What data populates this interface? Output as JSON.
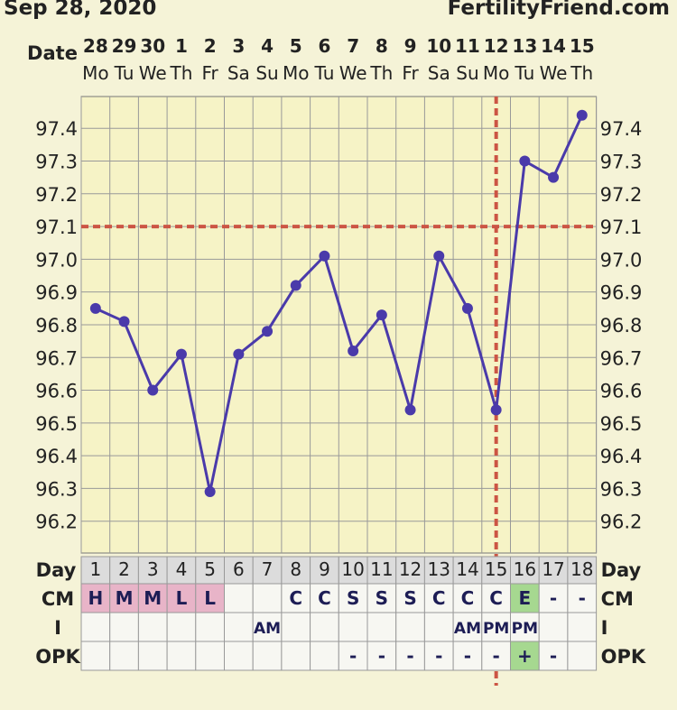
{
  "header": {
    "date": "Sep 28, 2020",
    "site": "FertilityFriend.com"
  },
  "row_labels": {
    "date": "Date",
    "day": "Day",
    "cm": "CM",
    "i": "I",
    "opk": "OPK"
  },
  "columns": [
    {
      "date": "28",
      "dow": "Mo",
      "day": "1",
      "cm": "H",
      "i": "",
      "opk": ""
    },
    {
      "date": "29",
      "dow": "Tu",
      "day": "2",
      "cm": "M",
      "i": "",
      "opk": ""
    },
    {
      "date": "30",
      "dow": "We",
      "day": "3",
      "cm": "M",
      "i": "",
      "opk": ""
    },
    {
      "date": "1",
      "dow": "Th",
      "day": "4",
      "cm": "L",
      "i": "",
      "opk": ""
    },
    {
      "date": "2",
      "dow": "Fr",
      "day": "5",
      "cm": "L",
      "i": "",
      "opk": ""
    },
    {
      "date": "3",
      "dow": "Sa",
      "day": "6",
      "cm": "",
      "i": "",
      "opk": ""
    },
    {
      "date": "4",
      "dow": "Su",
      "day": "7",
      "cm": "",
      "i": "AM",
      "opk": ""
    },
    {
      "date": "5",
      "dow": "Mo",
      "day": "8",
      "cm": "C",
      "i": "",
      "opk": ""
    },
    {
      "date": "6",
      "dow": "Tu",
      "day": "9",
      "cm": "C",
      "i": "",
      "opk": ""
    },
    {
      "date": "7",
      "dow": "We",
      "day": "10",
      "cm": "S",
      "i": "",
      "opk": "-"
    },
    {
      "date": "8",
      "dow": "Th",
      "day": "11",
      "cm": "S",
      "i": "",
      "opk": "-"
    },
    {
      "date": "9",
      "dow": "Fr",
      "day": "12",
      "cm": "S",
      "i": "",
      "opk": "-"
    },
    {
      "date": "10",
      "dow": "Sa",
      "day": "13",
      "cm": "C",
      "i": "",
      "opk": "-"
    },
    {
      "date": "11",
      "dow": "Su",
      "day": "14",
      "cm": "C",
      "i": "AM",
      "opk": "-"
    },
    {
      "date": "12",
      "dow": "Mo",
      "day": "15",
      "cm": "C",
      "i": "PM",
      "opk": "-"
    },
    {
      "date": "13",
      "dow": "Tu",
      "day": "16",
      "cm": "E",
      "i": "PM",
      "opk": "+"
    },
    {
      "date": "14",
      "dow": "We",
      "day": "17",
      "cm": "-",
      "i": "",
      "opk": "-"
    },
    {
      "date": "15",
      "dow": "Th",
      "day": "18",
      "cm": "-",
      "i": "",
      "opk": ""
    }
  ],
  "chart_data": {
    "type": "line",
    "x": [
      "1",
      "2",
      "3",
      "4",
      "5",
      "6",
      "7",
      "8",
      "9",
      "10",
      "11",
      "12",
      "13",
      "14",
      "15",
      "16",
      "17",
      "18"
    ],
    "values": [
      96.85,
      96.81,
      96.6,
      96.71,
      96.29,
      96.71,
      96.78,
      96.92,
      97.01,
      96.72,
      96.83,
      96.54,
      97.01,
      96.85,
      96.54,
      97.3,
      97.25,
      97.44
    ],
    "ylim": [
      96.1,
      97.5
    ],
    "y_ticks": [
      "96.2",
      "96.3",
      "96.4",
      "96.5",
      "96.6",
      "96.7",
      "96.8",
      "96.9",
      "97.0",
      "97.1",
      "97.2",
      "97.3",
      "97.4"
    ],
    "coverline": 97.1,
    "ovulation_day": "15",
    "grid": true
  },
  "colors": {
    "line": "#4a3aaa",
    "marker": "#4a3aaa",
    "coverline": "#cc5544",
    "plot_bg": "#f6f3c6",
    "grid": "#999999",
    "cm_fertile": "#e8b4c8",
    "cm_egg": "#a6d890",
    "day_row": "#dcdcdc",
    "cell_bg": "#f7f7f2"
  }
}
